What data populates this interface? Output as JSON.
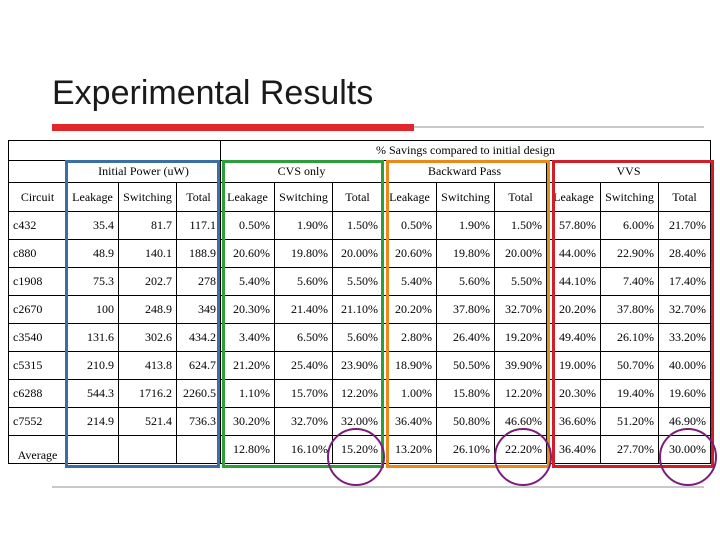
{
  "slide": {
    "title": "Experimental Results"
  },
  "table": {
    "super_header": "% Savings compared to initial design",
    "groups": {
      "initial": "Initial Power (uW)",
      "cvs": "CVS only",
      "backward": "Backward Pass",
      "vvs": "VVS"
    },
    "columns": [
      "Circuit",
      "Leakage",
      "Switching",
      "Total",
      "Leakage",
      "Switching",
      "Total",
      "Leakage",
      "Switching",
      "Total",
      "Leakage",
      "Switching",
      "Total"
    ],
    "rows": [
      [
        "c432",
        "35.4",
        "81.7",
        "117.1",
        "0.50%",
        "1.90%",
        "1.50%",
        "0.50%",
        "1.90%",
        "1.50%",
        "57.80%",
        "6.00%",
        "21.70%"
      ],
      [
        "c880",
        "48.9",
        "140.1",
        "188.9",
        "20.60%",
        "19.80%",
        "20.00%",
        "20.60%",
        "19.80%",
        "20.00%",
        "44.00%",
        "22.90%",
        "28.40%"
      ],
      [
        "c1908",
        "75.3",
        "202.7",
        "278",
        "5.40%",
        "5.60%",
        "5.50%",
        "5.40%",
        "5.60%",
        "5.50%",
        "44.10%",
        "7.40%",
        "17.40%"
      ],
      [
        "c2670",
        "100",
        "248.9",
        "349",
        "20.30%",
        "21.40%",
        "21.10%",
        "20.20%",
        "37.80%",
        "32.70%",
        "20.20%",
        "37.80%",
        "32.70%"
      ],
      [
        "c3540",
        "131.6",
        "302.6",
        "434.2",
        "3.40%",
        "6.50%",
        "5.60%",
        "2.80%",
        "26.40%",
        "19.20%",
        "49.40%",
        "26.10%",
        "33.20%"
      ],
      [
        "c5315",
        "210.9",
        "413.8",
        "624.7",
        "21.20%",
        "25.40%",
        "23.90%",
        "18.90%",
        "50.50%",
        "39.90%",
        "19.00%",
        "50.70%",
        "40.00%"
      ],
      [
        "c6288",
        "544.3",
        "1716.2",
        "2260.5",
        "1.10%",
        "15.70%",
        "12.20%",
        "1.00%",
        "15.80%",
        "12.20%",
        "20.30%",
        "19.40%",
        "19.60%"
      ],
      [
        "c7552",
        "214.9",
        "521.4",
        "736.3",
        "30.20%",
        "32.70%",
        "32.00%",
        "36.40%",
        "50.80%",
        "46.60%",
        "36.60%",
        "51.20%",
        "46.90%"
      ]
    ],
    "average_row": {
      "label": "Average",
      "values": [
        "",
        "",
        "",
        "12.80%",
        "16.10%",
        "15.20%",
        "13.20%",
        "26.10%",
        "22.20%",
        "36.40%",
        "27.70%",
        "30.00%"
      ]
    }
  },
  "highlights": {
    "box_colors": {
      "initial": "#3a6ea5",
      "cvs": "#2e9e3b",
      "backward": "#e88a1a",
      "vvs": "#d11f2a"
    },
    "circle_color": "#7b1e7a"
  }
}
